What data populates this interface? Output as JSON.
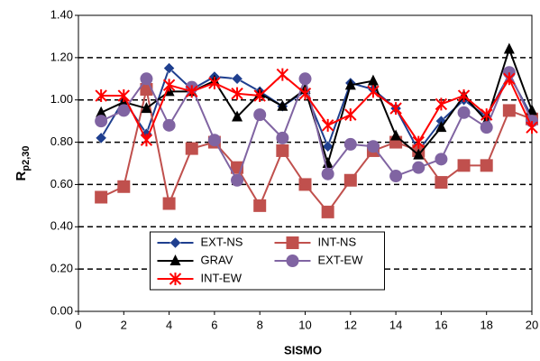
{
  "chart_data": {
    "type": "line",
    "xlabel": "SISMO",
    "ylabel": {
      "main": "R",
      "sub": "p2,30"
    },
    "x": [
      1,
      2,
      3,
      4,
      5,
      6,
      7,
      8,
      9,
      10,
      11,
      12,
      13,
      14,
      15,
      16,
      17,
      18,
      19,
      20
    ],
    "xlim": [
      0,
      20
    ],
    "xticks": [
      0,
      2,
      4,
      6,
      8,
      10,
      12,
      14,
      16,
      18,
      20
    ],
    "ylim": [
      0,
      1.4
    ],
    "yticks": [
      {
        "value": 0,
        "label": "0.00"
      },
      {
        "value": 0.2,
        "label": "0.20"
      },
      {
        "value": 0.4,
        "label": "0.40"
      },
      {
        "value": 0.6,
        "label": "0.60"
      },
      {
        "value": 0.8,
        "label": "0.80"
      },
      {
        "value": 1.0,
        "label": "1.00"
      },
      {
        "value": 1.2,
        "label": "1.20"
      },
      {
        "value": 1.4,
        "label": "1.40"
      }
    ],
    "grid": true,
    "legend": "lower center",
    "series": [
      {
        "name": "EXT-NS",
        "color": "#1f3f8f",
        "marker": "diamond",
        "values": [
          0.82,
          1.0,
          0.84,
          1.15,
          1.05,
          1.11,
          1.1,
          1.04,
          0.97,
          1.04,
          0.78,
          1.08,
          1.05,
          0.96,
          0.76,
          0.9,
          1.0,
          0.92,
          1.12,
          0.92
        ]
      },
      {
        "name": "INT-NS",
        "color": "#c0504d",
        "marker": "square",
        "values": [
          0.54,
          0.59,
          1.05,
          0.51,
          0.77,
          0.8,
          0.68,
          0.5,
          0.76,
          0.6,
          0.47,
          0.62,
          0.76,
          0.8,
          0.76,
          0.61,
          0.69,
          0.69,
          0.95,
          0.91
        ]
      },
      {
        "name": "GRAV",
        "color": "#000000",
        "marker": "triangle",
        "values": [
          0.94,
          0.99,
          0.96,
          1.04,
          1.04,
          1.09,
          0.92,
          1.03,
          0.97,
          1.05,
          0.7,
          1.07,
          1.09,
          0.83,
          0.74,
          0.87,
          1.02,
          0.9,
          1.24,
          0.95
        ]
      },
      {
        "name": "EXT-EW",
        "color": "#8064a2",
        "marker": "circle",
        "values": [
          0.9,
          0.95,
          1.1,
          0.88,
          1.06,
          0.81,
          0.62,
          0.93,
          0.82,
          1.1,
          0.65,
          0.79,
          0.78,
          0.64,
          0.68,
          0.72,
          0.94,
          0.87,
          1.13,
          0.9
        ]
      },
      {
        "name": "INT-EW",
        "color": "#ff0000",
        "marker": "asterisk",
        "values": [
          1.02,
          1.02,
          0.81,
          1.07,
          1.04,
          1.08,
          1.03,
          1.02,
          1.12,
          1.03,
          0.88,
          0.93,
          1.04,
          0.96,
          0.8,
          0.98,
          1.02,
          0.93,
          1.1,
          0.87
        ]
      }
    ]
  }
}
